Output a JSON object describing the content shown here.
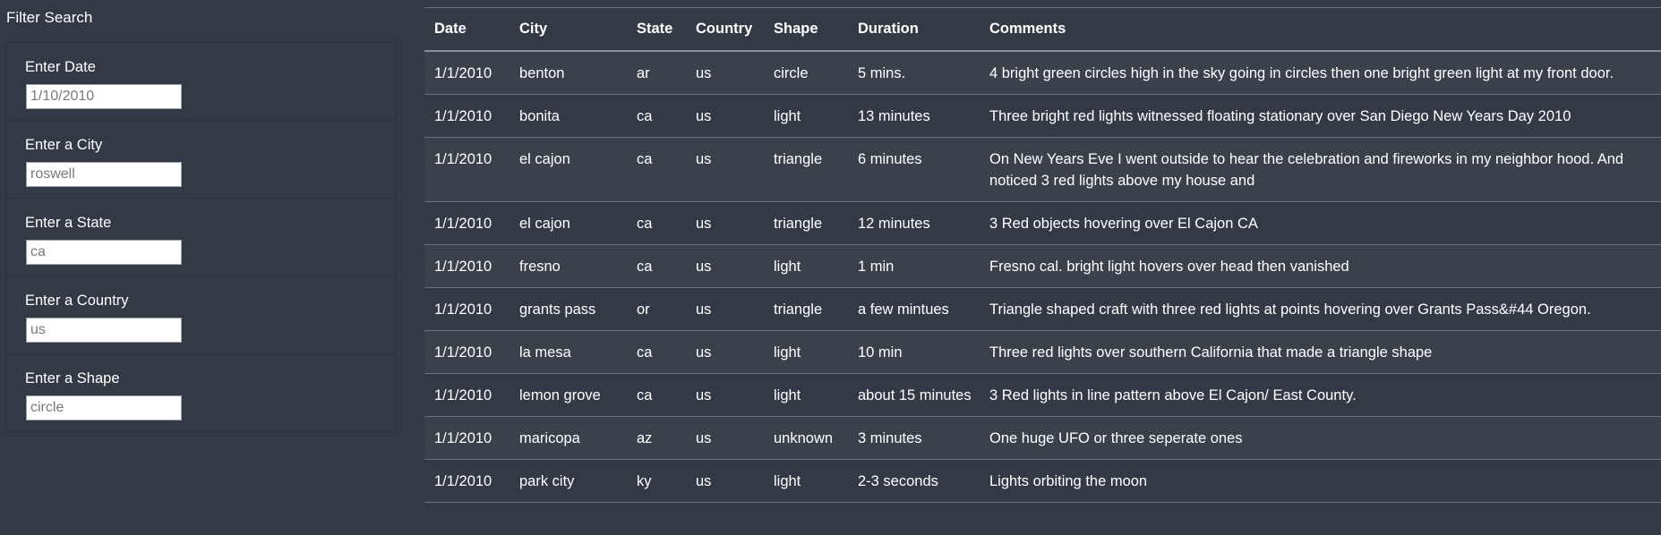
{
  "sidebar": {
    "title": "Filter Search",
    "filters": [
      {
        "label": "Enter Date",
        "placeholder": "1/10/2010"
      },
      {
        "label": "Enter a City",
        "placeholder": "roswell"
      },
      {
        "label": "Enter a State",
        "placeholder": "ca"
      },
      {
        "label": "Enter a Country",
        "placeholder": "us"
      },
      {
        "label": "Enter a Shape",
        "placeholder": "circle"
      }
    ]
  },
  "table": {
    "headers": [
      "Date",
      "City",
      "State",
      "Country",
      "Shape",
      "Duration",
      "Comments"
    ],
    "rows": [
      [
        "1/1/2010",
        "benton",
        "ar",
        "us",
        "circle",
        "5 mins.",
        "4 bright green circles high in the sky going in circles then one bright green light at my front door."
      ],
      [
        "1/1/2010",
        "bonita",
        "ca",
        "us",
        "light",
        "13 minutes",
        "Three bright red lights witnessed floating stationary over San Diego New Years Day 2010"
      ],
      [
        "1/1/2010",
        "el cajon",
        "ca",
        "us",
        "triangle",
        "6 minutes",
        "On New Years Eve I went outside to hear the celebration and fireworks in my neighbor hood. And noticed 3 red lights above my house and"
      ],
      [
        "1/1/2010",
        "el cajon",
        "ca",
        "us",
        "triangle",
        "12 minutes",
        "3 Red objects hovering over El Cajon CA"
      ],
      [
        "1/1/2010",
        "fresno",
        "ca",
        "us",
        "light",
        "1 min",
        "Fresno cal. bright light hovers over head then vanished"
      ],
      [
        "1/1/2010",
        "grants pass",
        "or",
        "us",
        "triangle",
        "a few mintues",
        "Triangle shaped craft with three red lights at points hovering over Grants Pass&#44 Oregon."
      ],
      [
        "1/1/2010",
        "la mesa",
        "ca",
        "us",
        "light",
        "10 min",
        "Three red lights over southern California that made a triangle shape"
      ],
      [
        "1/1/2010",
        "lemon grove",
        "ca",
        "us",
        "light",
        "about 15 minutes",
        "3 Red lights in line pattern above El Cajon/ East County."
      ],
      [
        "1/1/2010",
        "maricopa",
        "az",
        "us",
        "unknown",
        "3 minutes",
        "One huge UFO or three seperate ones"
      ],
      [
        "1/1/2010",
        "park city",
        "ky",
        "us",
        "light",
        "2-3 seconds",
        "Lights orbiting the moon"
      ]
    ]
  }
}
